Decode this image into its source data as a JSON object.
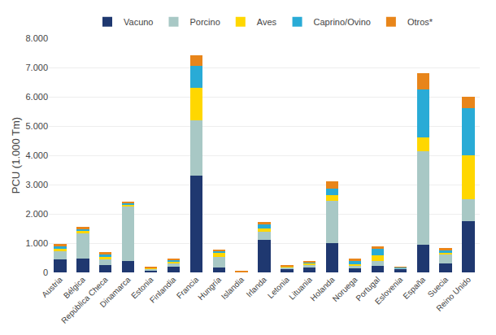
{
  "chart_data": {
    "type": "bar",
    "stacked": true,
    "categories": [
      "Austria",
      "Bélgica",
      "República Checa",
      "Dinamarca",
      "Estonia",
      "Finlandia",
      "Francia",
      "Hungría",
      "Islandia",
      "Irlanda",
      "Letonia",
      "Lituania",
      "Holanda",
      "Noruega",
      "Portugal",
      "Eslovenia",
      "España",
      "Suecia",
      "Reino Unido"
    ],
    "series": [
      {
        "name": "Vacuno",
        "color": "#1F3870",
        "values": [
          450,
          480,
          260,
          380,
          80,
          200,
          3300,
          170,
          5,
          1100,
          120,
          170,
          1000,
          130,
          210,
          120,
          950,
          300,
          1750
        ]
      },
      {
        "name": "Porcino",
        "color": "#A8C8C5",
        "values": [
          280,
          860,
          190,
          1870,
          40,
          130,
          1900,
          360,
          10,
          280,
          50,
          90,
          1450,
          100,
          180,
          20,
          3200,
          300,
          760
        ]
      },
      {
        "name": "Aves",
        "color": "#FFD700",
        "values": [
          80,
          80,
          80,
          80,
          20,
          50,
          1100,
          130,
          5,
          130,
          30,
          50,
          200,
          40,
          180,
          10,
          450,
          60,
          1500
        ]
      },
      {
        "name": "Caprino/Ovino",
        "color": "#29ABD6",
        "values": [
          80,
          60,
          90,
          50,
          20,
          40,
          760,
          60,
          5,
          120,
          20,
          40,
          200,
          110,
          230,
          20,
          1650,
          80,
          1600
        ]
      },
      {
        "name": "Otros*",
        "color": "#E8851A",
        "values": [
          80,
          80,
          80,
          50,
          20,
          60,
          350,
          60,
          5,
          100,
          20,
          40,
          250,
          90,
          90,
          20,
          550,
          90,
          400
        ]
      }
    ],
    "ylabel": "PCU (1.000 Tm)",
    "ylim": [
      0,
      8000
    ],
    "yticks": [
      0,
      {
        "value": 1000,
        "label": "1.000"
      },
      {
        "value": 2000,
        "label": "2.000"
      },
      {
        "value": 3000,
        "label": "3.000"
      },
      {
        "value": 4000,
        "label": "4.000"
      },
      {
        "value": 5000,
        "label": "5.000"
      },
      {
        "value": 6000,
        "label": "6.000"
      },
      {
        "value": 7000,
        "label": "7.000"
      },
      {
        "value": 8000,
        "label": "8.000"
      }
    ],
    "grid": true,
    "legend": "top"
  }
}
